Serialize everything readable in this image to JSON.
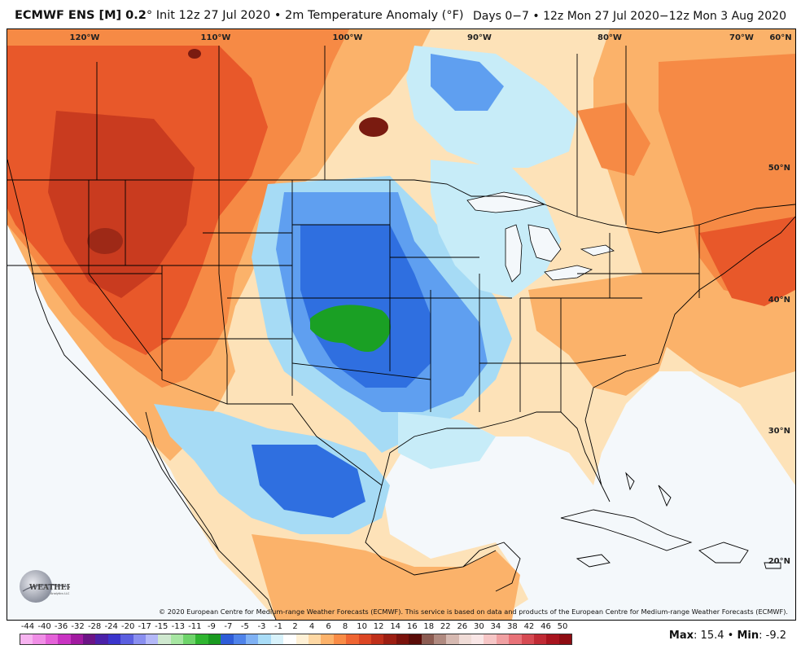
{
  "header": {
    "model": "ECMWF ENS [M] 0.2",
    "degree": "°",
    "init": "Init 12z 27 Jul 2020",
    "bullet": "•",
    "field": "2m Temperature Anomaly (°F)",
    "range": "Days 0−7 • 12z Mon 27 Jul 2020−12z Mon 3 Aug 2020"
  },
  "map": {
    "lon_labels": [
      "120°W",
      "110°W",
      "100°W",
      "90°W",
      "80°W",
      "70°W",
      "60°N"
    ],
    "lat_labels": [
      "50°N",
      "40°N",
      "30°N",
      "20°N"
    ],
    "colors": {
      "ocean": "#f4f8fb",
      "warm_light": "#fde2b8",
      "warm": "#fbb26a",
      "warm_mid": "#f68a45",
      "hot": "#e8582a",
      "hotter": "#c93b1f",
      "hottest": "#7a1b10",
      "cool_light": "#c7ecf8",
      "cool": "#a6dbf5",
      "cold": "#5f9ff0",
      "colder": "#2f6fe0",
      "coldest": "#1f4fc4",
      "green": "#1aa024",
      "border": "#000000"
    }
  },
  "copyright": "© 2020 European Centre for Medium-range Weather Forecasts (ECMWF). This service is based on data and products of the European Centre for Medium-range Weather Forecasts (ECMWF).",
  "logo": {
    "name": "WEATHERBELL",
    "sub": "Analytics LLC"
  },
  "colorbar": {
    "labels": [
      "-44",
      "-40",
      "-36",
      "-32",
      "-28",
      "-24",
      "-20",
      "-17",
      "-15",
      "-13",
      "-11",
      "-9",
      "-7",
      "-5",
      "-3",
      "-1",
      "2",
      "4",
      "6",
      "8",
      "10",
      "12",
      "14",
      "16",
      "18",
      "22",
      "26",
      "30",
      "34",
      "38",
      "42",
      "46",
      "50"
    ],
    "colors": [
      "#f7b3f0",
      "#f08ee6",
      "#e462d8",
      "#c934c2",
      "#a11aa0",
      "#6c1486",
      "#4b21a8",
      "#3b35cc",
      "#5b5fe0",
      "#8a8ff0",
      "#b4b8f8",
      "#cfe8cf",
      "#a7e6a2",
      "#6ed46a",
      "#2fb530",
      "#1a9a20",
      "#2e5cd8",
      "#4f83ea",
      "#7fb1f4",
      "#a9dcf7",
      "#d8f2fb",
      "#ffffff",
      "#fff1d6",
      "#fed8a4",
      "#fcb26a",
      "#f98c46",
      "#ef6532",
      "#dc4624",
      "#bf2f1a",
      "#9c1e12",
      "#7a120c",
      "#5a0c08",
      "#8c5c52",
      "#b08a80",
      "#d6b9b1",
      "#f0dcd7",
      "#f9e6e6",
      "#f6c6c6",
      "#f0a0a2",
      "#e87278",
      "#d64a52",
      "#c02a34",
      "#a8141e",
      "#8e0c12"
    ]
  },
  "stats": {
    "max_label": "Max",
    "max_value": ": 15.4",
    "separator": "•",
    "min_label": "Min",
    "min_value": ": -9.2"
  }
}
